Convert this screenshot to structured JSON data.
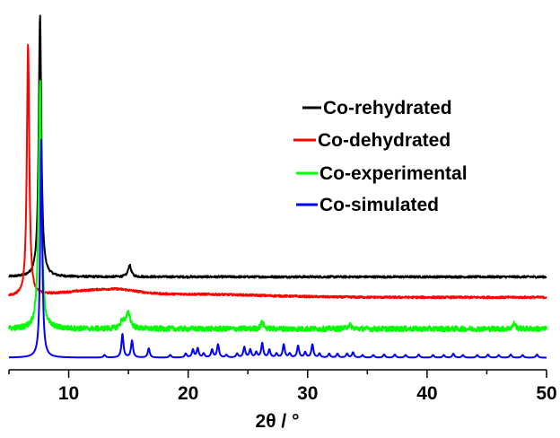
{
  "chart_data": {
    "type": "line",
    "title": "",
    "xlabel": "2θ / °",
    "ylabel": "",
    "xlim": [
      5,
      50
    ],
    "x_ticks": [
      10,
      20,
      30,
      40,
      50
    ],
    "x_tick_labels": [
      "10",
      "20",
      "30",
      "40",
      "50"
    ],
    "y_axis_shown": false,
    "grid": false,
    "legend_position": "top-right",
    "series": [
      {
        "name": "Co-rehydrated",
        "color": "#000000",
        "baseline": 0.78,
        "noise": 0.08,
        "peaks": [
          [
            7.6,
            10.0,
            0.13
          ],
          [
            15.1,
            0.45,
            0.15
          ]
        ]
      },
      {
        "name": "Co-dehydrated",
        "color": "#ff0000",
        "baseline": 0.0,
        "noise": 0.08,
        "humps": [
          [
            13.5,
            0.25,
            4.0,
            2.0
          ],
          [
            20.0,
            0.12,
            6.0,
            6.0
          ]
        ],
        "peaks": [
          [
            6.6,
            9.6,
            0.12
          ]
        ]
      },
      {
        "name": "Co-experimental",
        "color": "#00ff00",
        "baseline": -1.2,
        "noise": 0.2,
        "peaks": [
          [
            7.6,
            9.4,
            0.14
          ],
          [
            15.0,
            0.6,
            0.2
          ],
          [
            14.5,
            0.3,
            0.2
          ],
          [
            26.2,
            0.25,
            0.15
          ],
          [
            33.5,
            0.15,
            0.2
          ],
          [
            47.3,
            0.2,
            0.15
          ]
        ]
      },
      {
        "name": "Co-simulated",
        "color": "#0000ff",
        "baseline": -2.3,
        "noise": 0.0,
        "peaks": [
          [
            7.7,
            8.3,
            0.1
          ],
          [
            13.0,
            0.1,
            0.1
          ],
          [
            14.5,
            0.9,
            0.1
          ],
          [
            15.3,
            0.65,
            0.1
          ],
          [
            16.7,
            0.35,
            0.1
          ],
          [
            18.5,
            0.1,
            0.1
          ],
          [
            19.8,
            0.15,
            0.1
          ],
          [
            20.4,
            0.3,
            0.1
          ],
          [
            20.8,
            0.35,
            0.1
          ],
          [
            21.3,
            0.15,
            0.1
          ],
          [
            22.0,
            0.3,
            0.1
          ],
          [
            22.5,
            0.5,
            0.1
          ],
          [
            23.2,
            0.1,
            0.1
          ],
          [
            24.1,
            0.15,
            0.1
          ],
          [
            24.7,
            0.4,
            0.1
          ],
          [
            25.2,
            0.3,
            0.1
          ],
          [
            25.7,
            0.2,
            0.1
          ],
          [
            26.2,
            0.55,
            0.1
          ],
          [
            26.8,
            0.3,
            0.1
          ],
          [
            27.4,
            0.15,
            0.1
          ],
          [
            28.0,
            0.5,
            0.1
          ],
          [
            28.5,
            0.15,
            0.1
          ],
          [
            29.2,
            0.45,
            0.1
          ],
          [
            29.8,
            0.2,
            0.1
          ],
          [
            30.4,
            0.5,
            0.1
          ],
          [
            31.0,
            0.15,
            0.1
          ],
          [
            31.8,
            0.15,
            0.1
          ],
          [
            32.5,
            0.15,
            0.1
          ],
          [
            33.3,
            0.15,
            0.1
          ],
          [
            33.8,
            0.2,
            0.1
          ],
          [
            34.6,
            0.1,
            0.1
          ],
          [
            35.5,
            0.1,
            0.1
          ],
          [
            36.4,
            0.12,
            0.1
          ],
          [
            37.3,
            0.12,
            0.1
          ],
          [
            38.2,
            0.1,
            0.1
          ],
          [
            39.3,
            0.12,
            0.1
          ],
          [
            40.5,
            0.1,
            0.1
          ],
          [
            41.4,
            0.1,
            0.1
          ],
          [
            42.2,
            0.15,
            0.1
          ],
          [
            43.0,
            0.1,
            0.1
          ],
          [
            44.2,
            0.1,
            0.1
          ],
          [
            45.1,
            0.12,
            0.1
          ],
          [
            46.0,
            0.1,
            0.1
          ],
          [
            47.0,
            0.12,
            0.1
          ],
          [
            48.0,
            0.1,
            0.1
          ],
          [
            49.2,
            0.12,
            0.1
          ]
        ]
      }
    ]
  }
}
